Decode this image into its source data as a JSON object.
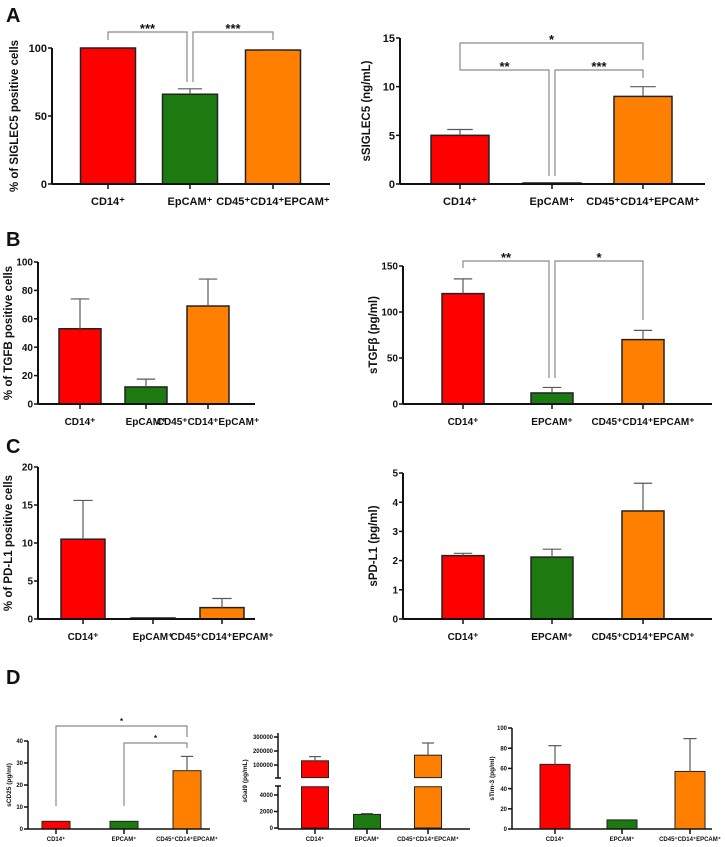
{
  "colors": {
    "CD14": "#ff0000",
    "EpCAM": "#1c7a10",
    "triple": "#ff8000",
    "error_bar": "#5a5a5a",
    "bracket": "#8a8a8a"
  },
  "panel_letters": [
    "A",
    "B",
    "C",
    "D"
  ],
  "chart_data": [
    {
      "id": "A-left",
      "panel": "A",
      "type": "bar",
      "ylabel": "% of SIGLEC5 positive cells",
      "ylim": [
        0,
        100
      ],
      "yticks": [
        0,
        50,
        100
      ],
      "categories": [
        "CD14⁺",
        "EpCAM⁺",
        "CD45⁺CD14⁺EPCAM⁺"
      ],
      "values": [
        100,
        66,
        98.5
      ],
      "errors": [
        0,
        4,
        0.3
      ],
      "significance": [
        {
          "from": 0,
          "to": 1,
          "label": "***"
        },
        {
          "from": 1,
          "to": 2,
          "label": "***"
        }
      ]
    },
    {
      "id": "A-right",
      "panel": "A",
      "type": "bar",
      "ylabel": "sSIGLEC5 (ng/mL)",
      "ylim": [
        0,
        15
      ],
      "yticks": [
        0,
        5,
        10,
        15
      ],
      "categories": [
        "CD14⁺",
        "EpCAM⁺",
        "CD45⁺CD14⁺EPCAM⁺"
      ],
      "values": [
        5,
        0,
        9
      ],
      "errors": [
        0.6,
        0,
        1
      ],
      "significance": [
        {
          "from": 0,
          "to": 2,
          "label": "*"
        },
        {
          "from": 0,
          "to": 1,
          "label": "**"
        },
        {
          "from": 1,
          "to": 2,
          "label": "***"
        }
      ]
    },
    {
      "id": "B-left",
      "panel": "B",
      "type": "bar",
      "ylabel": "% of TGFB positive cells",
      "ylim": [
        0,
        100
      ],
      "yticks": [
        0,
        20,
        40,
        60,
        80,
        100
      ],
      "categories": [
        "CD14⁺",
        "EpCAM⁺",
        "CD45⁺CD14⁺EpCAM⁺"
      ],
      "values": [
        53,
        12,
        69
      ],
      "errors": [
        21,
        5.5,
        19
      ],
      "significance": []
    },
    {
      "id": "B-right",
      "panel": "B",
      "type": "bar",
      "ylabel": "sTGFβ (pg/ml)",
      "ylim": [
        0,
        150
      ],
      "yticks": [
        0,
        50,
        100,
        150
      ],
      "categories": [
        "CD14⁺",
        "EPCAM⁺",
        "CD45⁺CD14⁺EPCAM⁺"
      ],
      "values": [
        120,
        12,
        70
      ],
      "errors": [
        16,
        6,
        10
      ],
      "significance": [
        {
          "from": 0,
          "to": 1,
          "label": "**"
        },
        {
          "from": 1,
          "to": 2,
          "label": "*"
        }
      ]
    },
    {
      "id": "C-left",
      "panel": "C",
      "type": "bar",
      "ylabel": "% of PD-L1 positive cells",
      "ylim": [
        0,
        20
      ],
      "yticks": [
        0,
        5,
        10,
        15,
        20
      ],
      "categories": [
        "CD14⁺",
        "EpCAM⁺",
        "CD45⁺CD14⁺EPCAM⁺"
      ],
      "values": [
        10.5,
        0.1,
        1.5
      ],
      "errors": [
        5.1,
        0,
        1.2
      ],
      "significance": []
    },
    {
      "id": "C-right",
      "panel": "C",
      "type": "bar",
      "ylabel": "sPD-L1 (pg/ml)",
      "ylim": [
        0,
        5
      ],
      "yticks": [
        0,
        1,
        2,
        3,
        4,
        5
      ],
      "categories": [
        "CD14⁺",
        "EPCAM⁺",
        "CD45⁺CD14⁺EPCAM⁺"
      ],
      "values": [
        2.17,
        2.12,
        3.7
      ],
      "errors": [
        0.08,
        0.27,
        0.95
      ],
      "significance": []
    },
    {
      "id": "D-1",
      "panel": "D",
      "type": "bar",
      "ylabel": "sCD25 (pg/ml)",
      "ylim": [
        0,
        40
      ],
      "yticks": [
        0,
        10,
        20,
        30,
        40
      ],
      "categories": [
        "CD14⁺",
        "EPCAM⁺",
        "CD45⁺CD14⁺EPCAM⁺"
      ],
      "values": [
        3.5,
        3.5,
        26.5
      ],
      "errors": [
        0,
        0,
        6.5
      ],
      "significance": [
        {
          "from": 0,
          "to": 2,
          "label": "*"
        },
        {
          "from": 1,
          "to": 2,
          "label": "*"
        }
      ]
    },
    {
      "id": "D-2",
      "panel": "D",
      "type": "bar",
      "ylabel": "sGal9 (pg/mL)",
      "ylim": [
        0,
        300000
      ],
      "axis_break": [
        5000,
        10000
      ],
      "yticks": [
        0,
        2000,
        4000,
        100000,
        200000,
        300000
      ],
      "categories": [
        "CD14⁺",
        "EPCAM⁺",
        "CD45⁺CD14⁺EPCAM⁺"
      ],
      "values": [
        130000,
        1650,
        170000
      ],
      "errors": [
        30000,
        100,
        87000
      ],
      "significance": []
    },
    {
      "id": "D-3",
      "panel": "D",
      "type": "bar",
      "ylabel": "sTim-3 (pg/ml)",
      "ylim": [
        0,
        100
      ],
      "yticks": [
        0,
        20,
        40,
        60,
        80,
        100
      ],
      "categories": [
        "CD14⁺",
        "EPCAM⁺",
        "CD45⁺CD14⁺EPCAM⁺"
      ],
      "values": [
        64,
        9,
        57
      ],
      "errors": [
        18.5,
        0,
        32.5
      ],
      "significance": []
    }
  ]
}
